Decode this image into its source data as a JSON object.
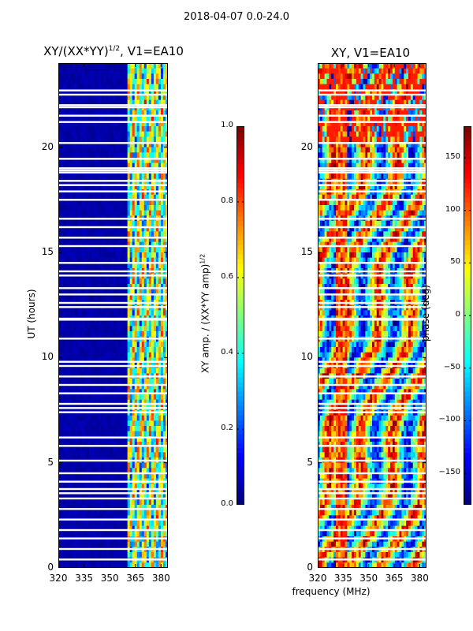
{
  "suptitle": "2018-04-07 0.0-24.0",
  "chart_data": [
    {
      "type": "heatmap",
      "title_prefix": "XY/(XX*YY)",
      "title_exp": "1/2",
      "title_suffix": ", V1=EA10",
      "xlabel": "",
      "ylabel": "UT (hours)",
      "xlim": [
        320,
        384
      ],
      "ylim": [
        0,
        24
      ],
      "xticks": [
        320,
        335,
        350,
        365,
        380
      ],
      "yticks": [
        0,
        5,
        10,
        15,
        20
      ],
      "colorbar": {
        "label_prefix": "XY amp. / (XX*YY amp)",
        "label_exp": "1/2",
        "range": [
          0.0,
          1.0
        ],
        "ticks": [
          "0.0",
          "0.2",
          "0.4",
          "0.6",
          "0.8",
          "1.0"
        ],
        "tick_values": [
          0.0,
          0.2,
          0.4,
          0.6,
          0.8,
          1.0
        ],
        "colormap": "jet"
      },
      "features": {
        "low_band_mhz": [
          320,
          361
        ],
        "low_band_value": 0.02,
        "high_band_mhz": [
          361,
          384
        ],
        "high_band_mean": 0.5
      }
    },
    {
      "type": "heatmap",
      "title": "XY, V1=EA10",
      "xlabel": "frequency (MHz)",
      "ylabel": "",
      "xlim": [
        320,
        384
      ],
      "ylim": [
        0,
        24
      ],
      "xticks": [
        320,
        335,
        350,
        365,
        380
      ],
      "yticks": [
        0,
        5,
        10,
        15,
        20
      ],
      "colorbar": {
        "label": "phase (deg)",
        "range": [
          -180,
          180
        ],
        "ticks": [
          "150",
          "100",
          "50",
          "0",
          "−50",
          "−100",
          "−150"
        ],
        "tick_values": [
          150,
          100,
          50,
          0,
          -50,
          -100,
          -150
        ],
        "colormap": "jet"
      }
    }
  ],
  "flagged_ut_hours": [
    0.4,
    0.9,
    1.4,
    1.8,
    2.3,
    2.8,
    3.3,
    3.55,
    3.75,
    4.1,
    4.5,
    5.1,
    5.8,
    6.2,
    7.4,
    7.6,
    7.8,
    8.3,
    8.7,
    9.1,
    9.6,
    9.8,
    10.9,
    11.8,
    11.85,
    12.4,
    12.6,
    13.0,
    13.3,
    13.9,
    14.1,
    14.5,
    15.3,
    15.7,
    16.2,
    16.6,
    17.5,
    17.9,
    18.2,
    18.4,
    18.8,
    18.9,
    19.0,
    19.45,
    20.2,
    21.2,
    21.5,
    21.9,
    22.0,
    22.5,
    22.7
  ],
  "colors": {
    "axis": "#000000",
    "background": "#ffffff"
  }
}
